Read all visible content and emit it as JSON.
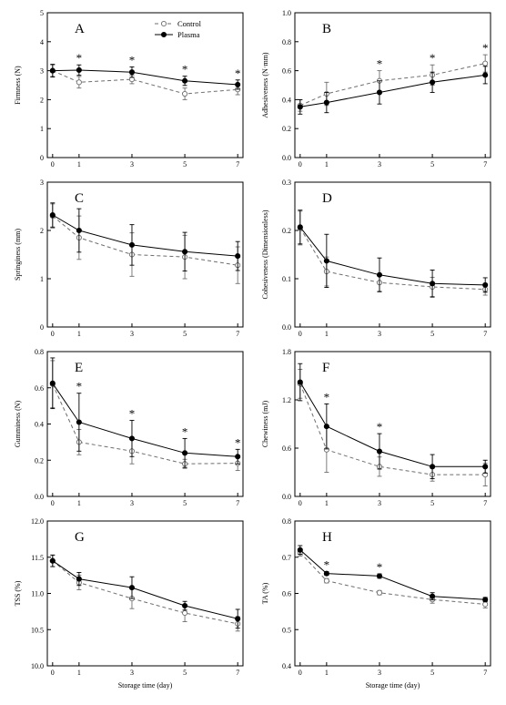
{
  "figure": {
    "legend": {
      "control": "Control",
      "plasma": "Plasma",
      "placement": "top-right of panel A"
    },
    "shared_xlabel": "Storage time (day)",
    "colors": {
      "axis": "#000000",
      "plasma": "#000000",
      "control": "#6e6e6e"
    }
  },
  "chart_data": [
    {
      "panel": "A",
      "type": "line",
      "ylabel": "Firmness (N)",
      "x": [
        0,
        1,
        3,
        5,
        7
      ],
      "xticks": [
        "0",
        "1",
        "3",
        "5",
        "7"
      ],
      "xlabel": "",
      "ylim": [
        0,
        5
      ],
      "yticks": [
        "0",
        "1",
        "2",
        "3",
        "4",
        "5"
      ],
      "series": [
        {
          "name": "Control",
          "values": [
            3.0,
            2.6,
            2.7,
            2.2,
            2.35
          ],
          "errors": [
            0.2,
            0.2,
            0.15,
            0.2,
            0.18
          ]
        },
        {
          "name": "Plasma",
          "values": [
            3.0,
            3.02,
            2.95,
            2.65,
            2.52
          ],
          "errors": [
            0.22,
            0.18,
            0.18,
            0.16,
            0.16
          ]
        }
      ],
      "significance_marks": [
        "",
        "*",
        "*",
        "*",
        "*"
      ]
    },
    {
      "panel": "B",
      "type": "line",
      "ylabel": "Adhesiveness (N·mm)",
      "x": [
        0,
        1,
        3,
        5,
        7
      ],
      "xticks": [
        "0",
        "1",
        "3",
        "5",
        "7"
      ],
      "xlabel": "",
      "ylim": [
        0,
        1.0
      ],
      "yticks": [
        "0.0",
        "0.2",
        "0.4",
        "0.6",
        "0.8",
        "1.0"
      ],
      "series": [
        {
          "name": "Control",
          "values": [
            0.36,
            0.44,
            0.53,
            0.57,
            0.65
          ],
          "errors": [
            0.04,
            0.08,
            0.07,
            0.07,
            0.06
          ]
        },
        {
          "name": "Plasma",
          "values": [
            0.35,
            0.38,
            0.45,
            0.52,
            0.57
          ],
          "errors": [
            0.05,
            0.07,
            0.08,
            0.07,
            0.06
          ]
        }
      ],
      "significance_marks": [
        "",
        "",
        "*",
        "*",
        "*"
      ]
    },
    {
      "panel": "C",
      "type": "line",
      "ylabel": "Springiness (mm)",
      "x": [
        0,
        1,
        3,
        5,
        7
      ],
      "xticks": [
        "0",
        "1",
        "3",
        "5",
        "7"
      ],
      "xlabel": "",
      "ylim": [
        0,
        3
      ],
      "yticks": [
        "0",
        "1",
        "2",
        "3"
      ],
      "series": [
        {
          "name": "Control",
          "values": [
            2.3,
            1.85,
            1.5,
            1.45,
            1.28
          ],
          "errors": [
            0.25,
            0.45,
            0.45,
            0.45,
            0.38
          ]
        },
        {
          "name": "Plasma",
          "values": [
            2.32,
            2.0,
            1.7,
            1.56,
            1.47
          ],
          "errors": [
            0.25,
            0.45,
            0.42,
            0.4,
            0.3
          ]
        }
      ],
      "significance_marks": [
        "",
        "",
        "",
        "",
        ""
      ]
    },
    {
      "panel": "D",
      "type": "line",
      "ylabel": "Cohesiveness (Dimensionless)",
      "x": [
        0,
        1,
        3,
        5,
        7
      ],
      "xticks": [
        "0",
        "1",
        "3",
        "5",
        "7"
      ],
      "xlabel": "",
      "ylim": [
        0,
        0.3
      ],
      "yticks": [
        "0.0",
        "0.1",
        "0.2",
        "0.3"
      ],
      "series": [
        {
          "name": "Control",
          "values": [
            0.205,
            0.115,
            0.092,
            0.083,
            0.078
          ],
          "errors": [
            0.035,
            0.03,
            0.018,
            0.02,
            0.012
          ]
        },
        {
          "name": "Plasma",
          "values": [
            0.207,
            0.137,
            0.108,
            0.09,
            0.087
          ],
          "errors": [
            0.035,
            0.055,
            0.035,
            0.028,
            0.015
          ]
        }
      ],
      "significance_marks": [
        "",
        "",
        "",
        "",
        ""
      ]
    },
    {
      "panel": "E",
      "type": "line",
      "ylabel": "Gumminess (N)",
      "x": [
        0,
        1,
        3,
        5,
        7
      ],
      "xticks": [
        "0",
        "1",
        "3",
        "5",
        "7"
      ],
      "xlabel": "",
      "ylim": [
        0,
        0.8
      ],
      "yticks": [
        "0.0",
        "0.2",
        "0.4",
        "0.6",
        "0.8"
      ],
      "series": [
        {
          "name": "Control",
          "values": [
            0.62,
            0.3,
            0.25,
            0.18,
            0.183
          ],
          "errors": [
            0.13,
            0.07,
            0.07,
            0.025,
            0.04
          ]
        },
        {
          "name": "Plasma",
          "values": [
            0.625,
            0.41,
            0.32,
            0.24,
            0.22
          ],
          "errors": [
            0.14,
            0.16,
            0.1,
            0.08,
            0.04
          ]
        }
      ],
      "significance_marks": [
        "",
        "*",
        "*",
        "*",
        "*"
      ]
    },
    {
      "panel": "F",
      "type": "line",
      "ylabel": "Chewiness (mJ)",
      "x": [
        0,
        1,
        3,
        5,
        7
      ],
      "xticks": [
        "0",
        "1",
        "3",
        "5",
        "7"
      ],
      "xlabel": "",
      "ylim": [
        0,
        1.8
      ],
      "yticks": [
        "0.0",
        "0.6",
        "1.2",
        "1.8"
      ],
      "series": [
        {
          "name": "Control",
          "values": [
            1.4,
            0.58,
            0.37,
            0.27,
            0.27
          ],
          "errors": [
            0.18,
            0.28,
            0.12,
            0.08,
            0.14
          ]
        },
        {
          "name": "Plasma",
          "values": [
            1.42,
            0.87,
            0.56,
            0.37,
            0.37
          ],
          "errors": [
            0.23,
            0.28,
            0.22,
            0.15,
            0.08
          ]
        }
      ],
      "significance_marks": [
        "",
        "*",
        "*",
        "",
        ""
      ]
    },
    {
      "panel": "G",
      "type": "line",
      "ylabel": "TSS (%)",
      "x": [
        0,
        1,
        3,
        5,
        7
      ],
      "xticks": [
        "0",
        "1",
        "3",
        "5",
        "7"
      ],
      "xlabel": "Storage time (day)",
      "ylim": [
        10.0,
        12.0
      ],
      "yticks": [
        "10.0",
        "10.5",
        "11.0",
        "11.5",
        "12.0"
      ],
      "series": [
        {
          "name": "Control",
          "values": [
            11.45,
            11.15,
            10.93,
            10.73,
            10.58
          ],
          "errors": [
            0.08,
            0.1,
            0.14,
            0.12,
            0.1
          ]
        },
        {
          "name": "Plasma",
          "values": [
            11.45,
            11.2,
            11.08,
            10.83,
            10.65
          ],
          "errors": [
            0.08,
            0.09,
            0.15,
            0.06,
            0.13
          ]
        }
      ],
      "significance_marks": [
        "",
        "",
        "",
        "",
        ""
      ]
    },
    {
      "panel": "H",
      "type": "line",
      "ylabel": "TA (%)",
      "x": [
        0,
        1,
        3,
        5,
        7
      ],
      "xticks": [
        "0",
        "1",
        "3",
        "5",
        "7"
      ],
      "xlabel": "Storage time (day)",
      "ylim": [
        0.4,
        0.8
      ],
      "yticks": [
        "0.4",
        "0.5",
        "0.6",
        "0.7",
        "0.8"
      ],
      "series": [
        {
          "name": "Control",
          "values": [
            0.713,
            0.635,
            0.602,
            0.583,
            0.57
          ],
          "errors": [
            0.01,
            0.006,
            0.006,
            0.01,
            0.01
          ]
        },
        {
          "name": "Plasma",
          "values": [
            0.72,
            0.655,
            0.648,
            0.592,
            0.583
          ],
          "errors": [
            0.012,
            0.005,
            0.006,
            0.01,
            0.006
          ]
        }
      ],
      "significance_marks": [
        "",
        "*",
        "*",
        "",
        ""
      ]
    }
  ]
}
